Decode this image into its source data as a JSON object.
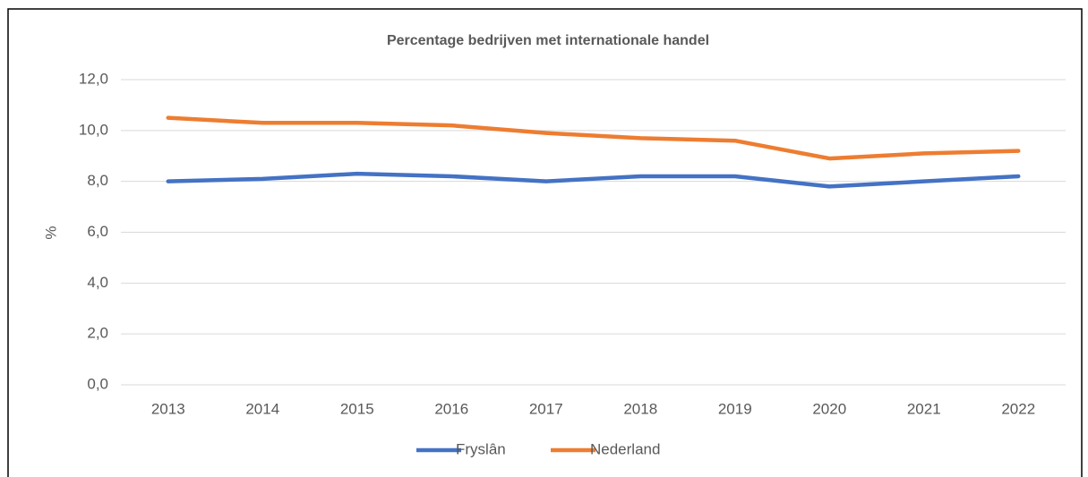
{
  "chart_data": {
    "type": "line",
    "title": "Percentage bedrijven met internationale handel",
    "y_label": "%",
    "categories": [
      "2013",
      "2014",
      "2015",
      "2016",
      "2017",
      "2018",
      "2019",
      "2020",
      "2021",
      "2022"
    ],
    "series": [
      {
        "name": "Fryslân",
        "color": "#4472c4",
        "values": [
          8.0,
          8.1,
          8.3,
          8.2,
          8.0,
          8.2,
          8.2,
          7.8,
          8.0,
          8.2
        ]
      },
      {
        "name": "Nederland",
        "color": "#ed7d31",
        "values": [
          10.5,
          10.3,
          10.3,
          10.2,
          9.9,
          9.7,
          9.6,
          8.9,
          9.1,
          9.2
        ]
      }
    ],
    "ylim": [
      0,
      12
    ],
    "yticks": [
      {
        "value": 0,
        "label": "0,0"
      },
      {
        "value": 2,
        "label": "2,0"
      },
      {
        "value": 4,
        "label": "4,0"
      },
      {
        "value": 6,
        "label": "6,0"
      },
      {
        "value": 8,
        "label": "8,0"
      },
      {
        "value": 10,
        "label": "10,0"
      },
      {
        "value": 12,
        "label": "12,0"
      }
    ],
    "grid": true,
    "legend": "bottom"
  }
}
